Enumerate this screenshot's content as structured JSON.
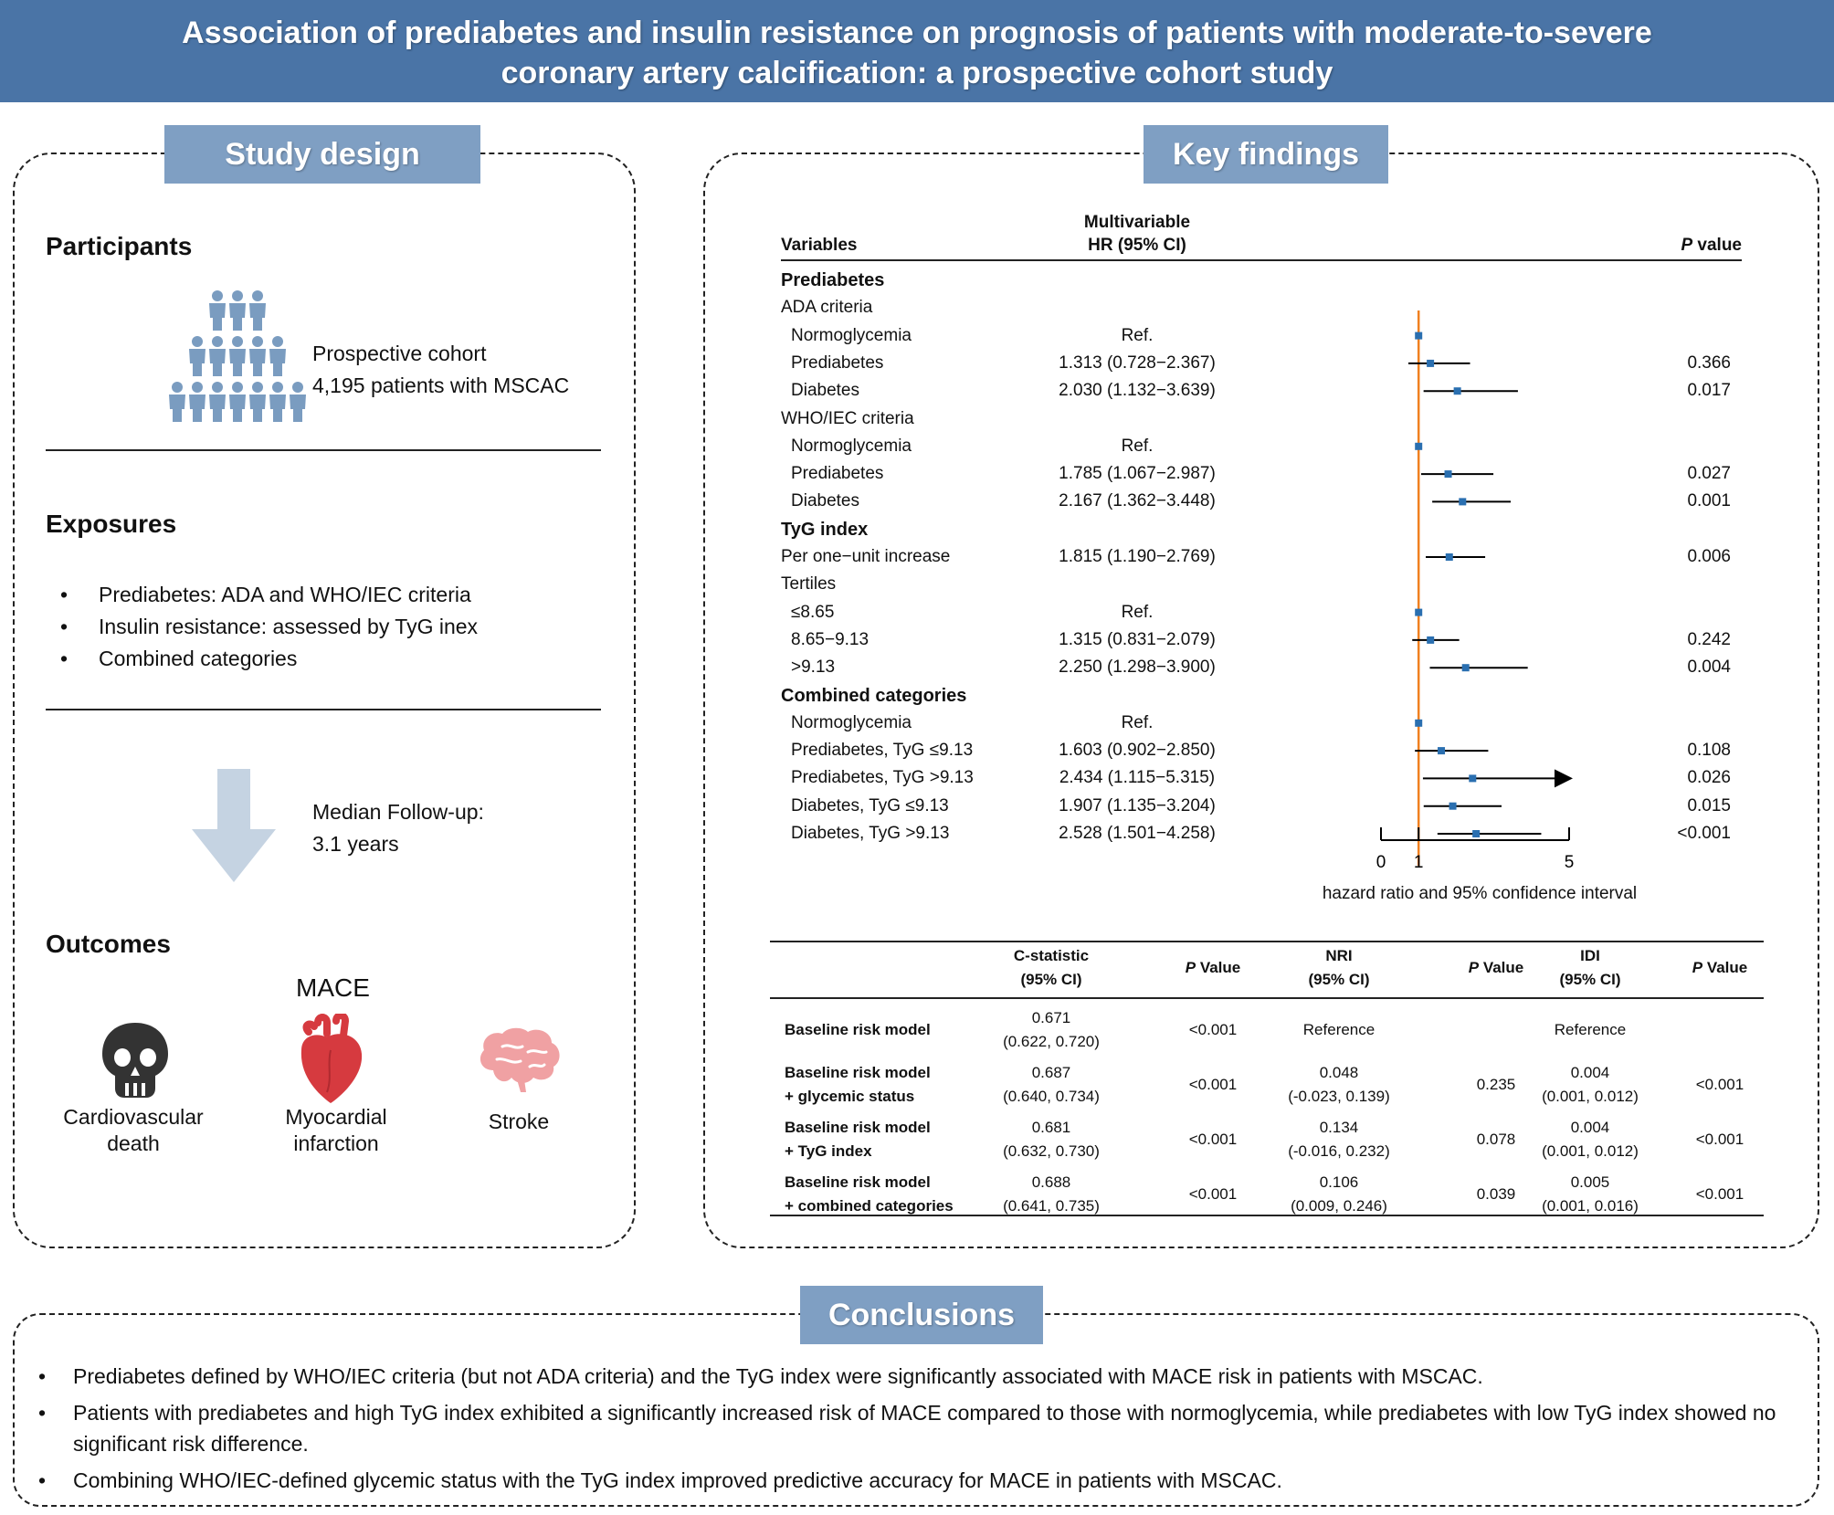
{
  "title": {
    "line1": "Association of prediabetes and insulin resistance on prognosis of patients with moderate-to-severe",
    "line2": "coronary artery calcification: a prospective cohort study"
  },
  "study_design": {
    "label": "Study design",
    "participants": {
      "heading": "Participants",
      "line1": "Prospective cohort",
      "line2": "4,195 patients with MSCAC"
    },
    "exposures": {
      "heading": "Exposures",
      "items": [
        "Prediabetes: ADA and WHO/IEC criteria",
        "Insulin resistance: assessed by TyG inex",
        "Combined categories"
      ]
    },
    "followup": {
      "line1": "Median Follow-up:",
      "line2": "3.1 years"
    },
    "outcomes": {
      "heading": "Outcomes",
      "mace": "MACE",
      "items": [
        {
          "line1": "Cardiovascular",
          "line2": "death"
        },
        {
          "line1": "Myocardial",
          "line2": "infarction"
        },
        {
          "line1": "Stroke",
          "line2": ""
        }
      ]
    }
  },
  "key_findings": {
    "label": "Key findings",
    "forest": {
      "headers": {
        "variables": "Variables",
        "hr_line1": "Multivariable",
        "hr_line2": "HR (95% CI)",
        "p_italic": "P",
        "p_rest": " value"
      },
      "rows": [
        {
          "label": "Prediabetes",
          "bold": true,
          "indent": 0,
          "hr": "",
          "p": ""
        },
        {
          "label": "ADA criteria",
          "bold": false,
          "indent": 0,
          "hr": "",
          "p": ""
        },
        {
          "label": "Normoglycemia",
          "bold": false,
          "indent": 1,
          "hr": "Ref.",
          "p": "",
          "est": 1,
          "lo": 1,
          "hi": 1
        },
        {
          "label": "Prediabetes",
          "bold": false,
          "indent": 1,
          "hr": "1.313 (0.728−2.367)",
          "p": "0.366",
          "est": 1.313,
          "lo": 0.728,
          "hi": 2.367
        },
        {
          "label": "Diabetes",
          "bold": false,
          "indent": 1,
          "hr": "2.030 (1.132−3.639)",
          "p": "0.017",
          "est": 2.03,
          "lo": 1.132,
          "hi": 3.639
        },
        {
          "label": "WHO/IEC criteria",
          "bold": false,
          "indent": 0,
          "hr": "",
          "p": ""
        },
        {
          "label": "Normoglycemia",
          "bold": false,
          "indent": 1,
          "hr": "Ref.",
          "p": "",
          "est": 1,
          "lo": 1,
          "hi": 1
        },
        {
          "label": "Prediabetes",
          "bold": false,
          "indent": 1,
          "hr": "1.785 (1.067−2.987)",
          "p": "0.027",
          "est": 1.785,
          "lo": 1.067,
          "hi": 2.987
        },
        {
          "label": "Diabetes",
          "bold": false,
          "indent": 1,
          "hr": "2.167 (1.362−3.448)",
          "p": "0.001",
          "est": 2.167,
          "lo": 1.362,
          "hi": 3.448
        },
        {
          "label": "TyG index",
          "bold": true,
          "indent": 0,
          "hr": "",
          "p": ""
        },
        {
          "label": "Per one−unit increase",
          "bold": false,
          "indent": 0,
          "hr": "1.815 (1.190−2.769)",
          "p": "0.006",
          "est": 1.815,
          "lo": 1.19,
          "hi": 2.769
        },
        {
          "label": "Tertiles",
          "bold": false,
          "indent": 0,
          "hr": "",
          "p": ""
        },
        {
          "label": "≤8.65",
          "bold": false,
          "indent": 1,
          "hr": "Ref.",
          "p": "",
          "est": 1,
          "lo": 1,
          "hi": 1
        },
        {
          "label": "8.65−9.13",
          "bold": false,
          "indent": 1,
          "hr": "1.315 (0.831−2.079)",
          "p": "0.242",
          "est": 1.315,
          "lo": 0.831,
          "hi": 2.079
        },
        {
          "label": ">9.13",
          "bold": false,
          "indent": 1,
          "hr": "2.250 (1.298−3.900)",
          "p": "0.004",
          "est": 2.25,
          "lo": 1.298,
          "hi": 3.9
        },
        {
          "label": "Combined categories",
          "bold": true,
          "indent": 0,
          "hr": "",
          "p": ""
        },
        {
          "label": "Normoglycemia",
          "bold": false,
          "indent": 1,
          "hr": "Ref.",
          "p": "",
          "est": 1,
          "lo": 1,
          "hi": 1
        },
        {
          "label": "Prediabetes, TyG ≤9.13",
          "bold": false,
          "indent": 1,
          "hr": "1.603 (0.902−2.850)",
          "p": "0.108",
          "est": 1.603,
          "lo": 0.902,
          "hi": 2.85
        },
        {
          "label": "Prediabetes, TyG >9.13",
          "bold": false,
          "indent": 1,
          "hr": "2.434 (1.115−5.315)",
          "p": "0.026",
          "est": 2.434,
          "lo": 1.115,
          "hi": 5.315,
          "arrow": true
        },
        {
          "label": "Diabetes, TyG ≤9.13",
          "bold": false,
          "indent": 1,
          "hr": "1.907 (1.135−3.204)",
          "p": "0.015",
          "est": 1.907,
          "lo": 1.135,
          "hi": 3.204
        },
        {
          "label": "Diabetes, TyG >9.13",
          "bold": false,
          "indent": 1,
          "hr": "2.528 (1.501−4.258)",
          "p": "<0.001",
          "est": 2.528,
          "lo": 1.501,
          "hi": 4.258
        }
      ],
      "axis": {
        "ticks": [
          "0",
          "1",
          "5"
        ],
        "xlabel": "hazard ratio and 95% confidence interval",
        "xlim": [
          0,
          5
        ],
        "ref_line": 1
      },
      "colors": {
        "ref_line": "#f08020",
        "point": "#2a6fb0",
        "ci": "#000000"
      }
    },
    "metrics": {
      "headers": [
        {
          "line1": "",
          "line2": ""
        },
        {
          "line1": "C-statistic",
          "line2": "(95% CI)"
        },
        {
          "line1": "P",
          "line2": "Value",
          "italicP": true
        },
        {
          "line1": "NRI",
          "line2": "(95% CI)"
        },
        {
          "line1": "P",
          "line2": "Value",
          "italicP": true
        },
        {
          "line1": "IDI",
          "line2": "(95% CI)"
        },
        {
          "line1": "P",
          "line2": "Value",
          "italicP": true
        }
      ],
      "rows": [
        {
          "model1": "Baseline risk model",
          "model2": "",
          "c1": "0.671",
          "c2": "(0.622, 0.720)",
          "cp": "<0.001",
          "n1": "Reference",
          "n2": "",
          "np": "",
          "i1": "Reference",
          "i2": "",
          "ip": ""
        },
        {
          "model1": "Baseline risk model",
          "model2": "+ glycemic status",
          "c1": "0.687",
          "c2": "(0.640, 0.734)",
          "cp": "<0.001",
          "n1": "0.048",
          "n2": "(-0.023, 0.139)",
          "np": "0.235",
          "i1": "0.004",
          "i2": "(0.001, 0.012)",
          "ip": "<0.001"
        },
        {
          "model1": "Baseline risk model",
          "model2": "+ TyG index",
          "c1": "0.681",
          "c2": "(0.632, 0.730)",
          "cp": "<0.001",
          "n1": "0.134",
          "n2": "(-0.016, 0.232)",
          "np": "0.078",
          "i1": "0.004",
          "i2": "(0.001, 0.012)",
          "ip": "<0.001"
        },
        {
          "model1": "Baseline risk model",
          "model2": "+ combined categories",
          "c1": "0.688",
          "c2": "(0.641, 0.735)",
          "cp": "<0.001",
          "n1": "0.106",
          "n2": "(0.009, 0.246)",
          "np": "0.039",
          "i1": "0.005",
          "i2": "(0.001, 0.016)",
          "ip": "<0.001"
        }
      ]
    }
  },
  "conclusions": {
    "label": "Conclusions",
    "items": [
      "Prediabetes defined by WHO/IEC criteria (but not ADA criteria) and the TyG index were significantly associated with MACE risk in patients with MSCAC.",
      "Patients with prediabetes and high TyG index exhibited a significantly increased risk of MACE compared to those with normoglycemia, while prediabetes with low TyG index showed no significant risk difference.",
      "Combining WHO/IEC-defined glycemic status with the TyG index improved predictive accuracy for MACE in patients with MSCAC."
    ]
  },
  "colors": {
    "title_bg": "#4a74a6",
    "label_bg": "#7f9fc3",
    "icon_people": "#7a9cc0",
    "arrow": "#c5d3e2",
    "skull": "#333333",
    "heart": "#d63a3f",
    "brain": "#f0a1a3"
  },
  "icons": [
    "people-pyramid-icon",
    "down-arrow-icon",
    "skull-icon",
    "heart-icon",
    "brain-icon"
  ]
}
